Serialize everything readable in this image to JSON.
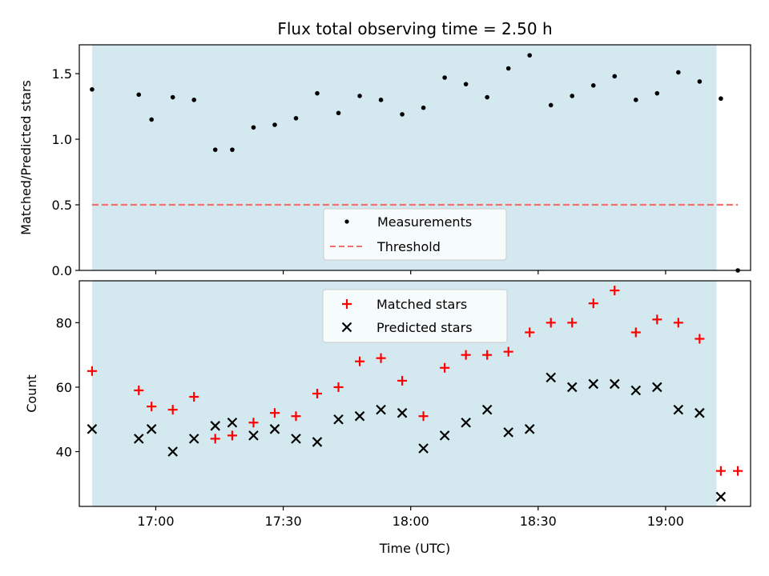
{
  "chart_data": [
    {
      "type": "scatter",
      "title": "Flux total observing time = 2.50 h",
      "xlabel": "",
      "ylabel": "Matched/Predicted stars",
      "ylim": [
        0,
        1.72
      ],
      "yticks": [
        0.0,
        0.5,
        1.0,
        1.5
      ],
      "ytick_labels": [
        "0.0",
        "0.5",
        "1.0",
        "1.5"
      ],
      "x_range": [
        "16:42",
        "19:20"
      ],
      "observing_window": [
        "16:45",
        "19:12"
      ],
      "window_color": "#d3e9ef",
      "threshold": 0.5,
      "legend_position": "bottom-center",
      "series": [
        {
          "name": "Measurements",
          "color": "#000000",
          "marker": "dot",
          "points": [
            [
              "16:45",
              1.38
            ],
            [
              "16:56",
              1.34
            ],
            [
              "16:59",
              1.15
            ],
            [
              "17:04",
              1.32
            ],
            [
              "17:09",
              1.3
            ],
            [
              "17:14",
              0.92
            ],
            [
              "17:18",
              0.92
            ],
            [
              "17:23",
              1.09
            ],
            [
              "17:28",
              1.11
            ],
            [
              "17:33",
              1.16
            ],
            [
              "17:38",
              1.35
            ],
            [
              "17:43",
              1.2
            ],
            [
              "17:48",
              1.33
            ],
            [
              "17:53",
              1.3
            ],
            [
              "17:58",
              1.19
            ],
            [
              "18:03",
              1.24
            ],
            [
              "18:08",
              1.47
            ],
            [
              "18:13",
              1.42
            ],
            [
              "18:18",
              1.32
            ],
            [
              "18:23",
              1.54
            ],
            [
              "18:28",
              1.64
            ],
            [
              "18:33",
              1.26
            ],
            [
              "18:38",
              1.33
            ],
            [
              "18:43",
              1.41
            ],
            [
              "18:48",
              1.48
            ],
            [
              "18:53",
              1.3
            ],
            [
              "18:58",
              1.35
            ],
            [
              "19:03",
              1.51
            ],
            [
              "19:08",
              1.44
            ],
            [
              "19:13",
              1.31
            ],
            [
              "19:17",
              0.0
            ]
          ]
        },
        {
          "name": "Threshold",
          "color": "#f07070",
          "style": "dashed",
          "x": [
            "16:45",
            "19:17"
          ],
          "values": [
            0.5,
            0.5
          ]
        }
      ]
    },
    {
      "type": "scatter",
      "xlabel": "Time (UTC)",
      "ylabel": "Count",
      "ylim": [
        23,
        93
      ],
      "yticks": [
        40,
        60,
        80
      ],
      "ytick_labels": [
        "40",
        "60",
        "80"
      ],
      "x_range": [
        "16:42",
        "19:20"
      ],
      "xticks": [
        "17:00",
        "17:30",
        "18:00",
        "18:30",
        "19:00"
      ],
      "observing_window": [
        "16:45",
        "19:12"
      ],
      "window_color": "#d3e9ef",
      "legend_position": "top-center",
      "series": [
        {
          "name": "Matched stars",
          "color": "#ff0000",
          "marker": "plus",
          "points": [
            [
              "16:45",
              65
            ],
            [
              "16:56",
              59
            ],
            [
              "16:59",
              54
            ],
            [
              "17:04",
              53
            ],
            [
              "17:09",
              57
            ],
            [
              "17:14",
              44
            ],
            [
              "17:18",
              45
            ],
            [
              "17:23",
              49
            ],
            [
              "17:28",
              52
            ],
            [
              "17:33",
              51
            ],
            [
              "17:38",
              58
            ],
            [
              "17:43",
              60
            ],
            [
              "17:48",
              68
            ],
            [
              "17:53",
              69
            ],
            [
              "17:58",
              62
            ],
            [
              "18:03",
              51
            ],
            [
              "18:08",
              66
            ],
            [
              "18:13",
              70
            ],
            [
              "18:18",
              70
            ],
            [
              "18:23",
              71
            ],
            [
              "18:28",
              77
            ],
            [
              "18:33",
              80
            ],
            [
              "18:38",
              80
            ],
            [
              "18:43",
              86
            ],
            [
              "18:48",
              90
            ],
            [
              "18:53",
              77
            ],
            [
              "18:58",
              81
            ],
            [
              "19:03",
              80
            ],
            [
              "19:08",
              75
            ],
            [
              "19:13",
              34
            ],
            [
              "19:17",
              34
            ]
          ]
        },
        {
          "name": "Predicted stars",
          "color": "#000000",
          "marker": "x",
          "points": [
            [
              "16:45",
              47
            ],
            [
              "16:56",
              44
            ],
            [
              "16:59",
              47
            ],
            [
              "17:04",
              40
            ],
            [
              "17:09",
              44
            ],
            [
              "17:14",
              48
            ],
            [
              "17:18",
              49
            ],
            [
              "17:23",
              45
            ],
            [
              "17:28",
              47
            ],
            [
              "17:33",
              44
            ],
            [
              "17:38",
              43
            ],
            [
              "17:43",
              50
            ],
            [
              "17:48",
              51
            ],
            [
              "17:53",
              53
            ],
            [
              "17:58",
              52
            ],
            [
              "18:03",
              41
            ],
            [
              "18:08",
              45
            ],
            [
              "18:13",
              49
            ],
            [
              "18:18",
              53
            ],
            [
              "18:23",
              46
            ],
            [
              "18:28",
              47
            ],
            [
              "18:33",
              63
            ],
            [
              "18:38",
              60
            ],
            [
              "18:43",
              61
            ],
            [
              "18:48",
              61
            ],
            [
              "18:53",
              59
            ],
            [
              "18:58",
              60
            ],
            [
              "19:03",
              53
            ],
            [
              "19:08",
              52
            ],
            [
              "19:13",
              26
            ]
          ]
        }
      ]
    }
  ]
}
